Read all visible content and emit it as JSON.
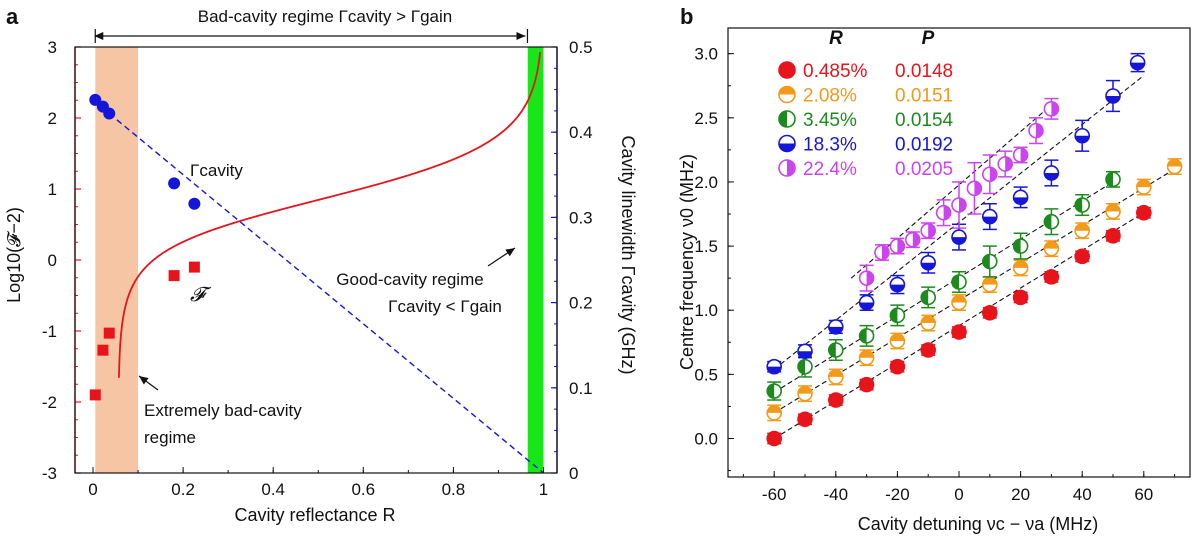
{
  "panels": {
    "a": {
      "label": "a",
      "top_annotation": "Bad-cavity regime Γcavity > Γgain",
      "good_cavity_line1": "Good-cavity regime",
      "good_cavity_line2": "Γcavity < Γgain",
      "extremely_bad_line1": "Extremely bad-cavity",
      "extremely_bad_line2": "regime",
      "gamma_label": "Γcavity",
      "F_label": "𝓕"
    },
    "b": {
      "label": "b",
      "legend_header_R": "R",
      "legend_header_P": "P"
    }
  },
  "colors": {
    "red": "#e8141b",
    "blue": "#1616d8",
    "orange": "#f29a1a",
    "green": "#1d8a1d",
    "purple": "#cc44ee",
    "peach": "#f6c6a4",
    "lime": "#19e619",
    "black": "#111111"
  },
  "chart_data": [
    {
      "id": "a",
      "type": "line",
      "xlabel": "Cavity reflectance R",
      "ylabel_left": "Log10(𝓕−2)",
      "ylabel_right": "Cavity linewidth Γcavity (GHz)",
      "xlim": [
        -0.04,
        1.03
      ],
      "ylim_left": [
        -3,
        3
      ],
      "ylim_right": [
        0,
        0.5
      ],
      "xticks": [
        0,
        0.2,
        0.4,
        0.6,
        0.8,
        1
      ],
      "xtick_labels": [
        "0",
        "0.2",
        "0.4",
        "0.6",
        "0.8",
        "1"
      ],
      "yticks_left": [
        -3,
        -2,
        -1,
        0,
        1,
        2,
        3
      ],
      "ytick_labels_left": [
        "-3",
        "-2",
        "-1",
        "0",
        "1",
        "2",
        "3"
      ],
      "yticks_right": [
        0,
        0.1,
        0.2,
        0.3,
        0.4,
        0.5
      ],
      "ytick_labels_right": [
        "0",
        "0.1",
        "0.2",
        "0.3",
        "0.4",
        "0.5"
      ],
      "shaded_regions": [
        {
          "name": "extremely-bad-cavity",
          "x": [
            0.005,
            0.1
          ],
          "color": "#f6c6a4"
        },
        {
          "name": "good-cavity",
          "x": [
            0.965,
            1.0
          ],
          "color": "#19e619"
        }
      ],
      "arrow_span": [
        0.005,
        0.96
      ],
      "series": [
        {
          "name": "𝓕",
          "axis": "left",
          "style": "curve-with-squares",
          "color": "#e8141b",
          "points": [
            [
              0.005,
              -1.9
            ],
            [
              0.022,
              -1.27
            ],
            [
              0.036,
              -1.03
            ],
            [
              0.18,
              -0.22
            ],
            [
              0.225,
              -0.1
            ]
          ]
        },
        {
          "name": "Γcavity",
          "axis": "right",
          "style": "dashed-line-with-circles",
          "color": "#1616d8",
          "points": [
            [
              0.005,
              0.438
            ],
            [
              0.022,
              0.43
            ],
            [
              0.036,
              0.422
            ],
            [
              0.18,
              0.34
            ],
            [
              0.225,
              0.316
            ]
          ],
          "line": [
            [
              0.036,
              0.422
            ],
            [
              1.0,
              0.0
            ]
          ]
        }
      ]
    },
    {
      "id": "b",
      "type": "scatter",
      "xlabel": "Cavity detuning νc − νa (MHz)",
      "ylabel": "Centre frequency ν0 (MHz)",
      "xlim": [
        -75,
        75
      ],
      "ylim": [
        -0.3,
        3.2
      ],
      "xticks": [
        -60,
        -40,
        -20,
        0,
        20,
        40,
        60
      ],
      "xtick_labels": [
        "-60",
        "-40",
        "-20",
        "0",
        "20",
        "40",
        "60"
      ],
      "yticks": [
        0,
        0.5,
        1,
        1.5,
        2,
        2.5,
        3
      ],
      "ytick_labels": [
        "0.0",
        "0.5",
        "1.0",
        "1.5",
        "2.0",
        "2.5",
        "3.0"
      ],
      "series": [
        {
          "name": "0.485%",
          "P": "0.0148",
          "color": "#e8141b",
          "fill": "full",
          "x": [
            -60,
            -50,
            -40,
            -30,
            -20,
            -10,
            0,
            10,
            20,
            30,
            40,
            50,
            60
          ],
          "y": [
            0.0,
            0.15,
            0.3,
            0.42,
            0.56,
            0.69,
            0.83,
            0.98,
            1.1,
            1.26,
            1.42,
            1.58,
            1.76
          ],
          "err": [
            0.04,
            0.04,
            0.04,
            0.04,
            0.04,
            0.04,
            0.04,
            0.04,
            0.04,
            0.04,
            0.04,
            0.04,
            0.04
          ],
          "fit": [
            [
              -60,
              0.0
            ],
            [
              60,
              1.76
            ]
          ]
        },
        {
          "name": "2.08%",
          "P": "0.0151",
          "color": "#f29a1a",
          "fill": "top",
          "x": [
            -60,
            -50,
            -40,
            -30,
            -20,
            -10,
            0,
            10,
            20,
            30,
            40,
            50,
            60,
            70
          ],
          "y": [
            0.2,
            0.35,
            0.48,
            0.63,
            0.76,
            0.9,
            1.06,
            1.2,
            1.33,
            1.48,
            1.62,
            1.77,
            1.96,
            2.12
          ],
          "err": [
            0.06,
            0.06,
            0.06,
            0.06,
            0.06,
            0.06,
            0.06,
            0.06,
            0.06,
            0.06,
            0.06,
            0.06,
            0.06,
            0.06
          ],
          "fit": [
            [
              -60,
              0.2
            ],
            [
              70,
              2.1
            ]
          ]
        },
        {
          "name": "3.45%",
          "P": "0.0154",
          "color": "#1d8a1d",
          "fill": "left",
          "x": [
            -60,
            -50,
            -40,
            -30,
            -20,
            -10,
            0,
            10,
            20,
            30,
            40,
            50
          ],
          "y": [
            0.37,
            0.56,
            0.69,
            0.8,
            0.96,
            1.1,
            1.22,
            1.38,
            1.5,
            1.69,
            1.82,
            2.02
          ],
          "err": [
            0.07,
            0.08,
            0.08,
            0.08,
            0.08,
            0.08,
            0.08,
            0.12,
            0.1,
            0.1,
            0.08,
            0.06
          ],
          "fit": [
            [
              -60,
              0.36
            ],
            [
              50,
              2.0
            ]
          ]
        },
        {
          "name": "18.3%",
          "P": "0.0192",
          "color": "#1616d8",
          "fill": "bottom",
          "x": [
            -60,
            -50,
            -40,
            -30,
            -20,
            -10,
            0,
            10,
            20,
            30,
            40,
            50,
            58
          ],
          "y": [
            0.56,
            0.68,
            0.87,
            1.06,
            1.2,
            1.37,
            1.57,
            1.73,
            1.88,
            2.07,
            2.36,
            2.67,
            2.93
          ],
          "err": [
            0.04,
            0.05,
            0.05,
            0.06,
            0.07,
            0.08,
            0.1,
            0.1,
            0.08,
            0.1,
            0.12,
            0.12,
            0.07
          ],
          "fit": [
            [
              -60,
              0.54
            ],
            [
              60,
              2.83
            ]
          ]
        },
        {
          "name": "22.4%",
          "P": "0.0205",
          "color": "#cc44ee",
          "fill": "right",
          "x": [
            -30,
            -25,
            -20,
            -15,
            -10,
            -5,
            0,
            5,
            10,
            15,
            20,
            25,
            30
          ],
          "y": [
            1.25,
            1.45,
            1.5,
            1.55,
            1.62,
            1.76,
            1.82,
            1.95,
            2.06,
            2.14,
            2.21,
            2.4,
            2.57
          ],
          "err": [
            0.1,
            0.06,
            0.06,
            0.06,
            0.06,
            0.1,
            0.18,
            0.2,
            0.15,
            0.1,
            0.06,
            0.1,
            0.08
          ],
          "fit": [
            [
              -35,
              1.25
            ],
            [
              30,
              2.6
            ]
          ]
        }
      ]
    }
  ]
}
